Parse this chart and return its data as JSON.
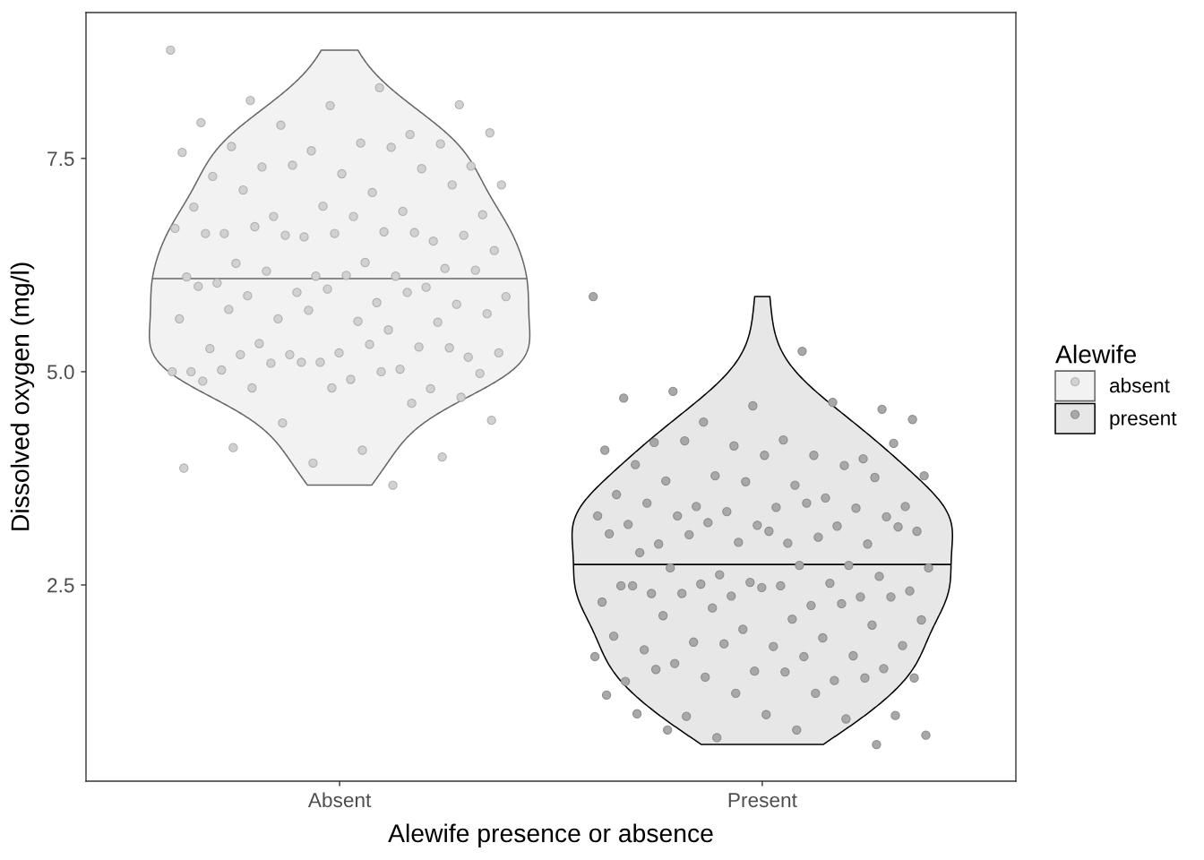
{
  "chart_data": {
    "type": "scatter",
    "marker": "circle",
    "xlabel": "Alewife presence or absence",
    "ylabel": "Dissolved oxygen (mg/l)",
    "legend_title": "Alewife",
    "legend": "right",
    "categories": [
      "Absent",
      "Present"
    ],
    "ylim": [
      0.2,
      9.21
    ],
    "yticks": [
      2.5,
      {
        "value": 5,
        "label": "5.0"
      },
      7.5
    ],
    "ref_lines": [
      {
        "axis": "y",
        "value": 6.09,
        "color": "#666666"
      },
      {
        "axis": "y",
        "value": 2.74,
        "color": "#000000"
      }
    ],
    "series": [
      {
        "name": "absent",
        "color": "#d1d1d1",
        "x": [
          "Absent",
          "Absent",
          "Absent",
          "Absent",
          "Absent",
          "Absent",
          "Absent",
          "Absent",
          "Absent",
          "Absent",
          "Absent",
          "Absent",
          "Absent",
          "Absent",
          "Absent",
          "Absent",
          "Absent",
          "Absent",
          "Absent",
          "Absent",
          "Absent",
          "Absent",
          "Absent",
          "Absent",
          "Absent",
          "Absent",
          "Absent",
          "Absent",
          "Absent",
          "Absent",
          "Absent",
          "Absent",
          "Absent",
          "Absent",
          "Absent",
          "Absent",
          "Absent",
          "Absent",
          "Absent",
          "Absent",
          "Absent",
          "Absent",
          "Absent",
          "Absent",
          "Absent",
          "Absent",
          "Absent",
          "Absent",
          "Absent",
          "Absent",
          "Absent",
          "Absent",
          "Absent",
          "Absent",
          "Absent",
          "Absent",
          "Absent",
          "Absent",
          "Absent",
          "Absent",
          "Absent",
          "Absent",
          "Absent",
          "Absent",
          "Absent",
          "Absent",
          "Absent",
          "Absent",
          "Absent",
          "Absent",
          "Absent",
          "Absent",
          "Absent",
          "Absent",
          "Absent",
          "Absent",
          "Absent",
          "Absent",
          "Absent",
          "Absent",
          "Absent",
          "Absent",
          "Absent",
          "Absent",
          "Absent",
          "Absent",
          "Absent",
          "Absent",
          "Absent",
          "Absent",
          "Absent",
          "Absent",
          "Absent",
          "Absent",
          "Absent",
          "Absent",
          "Absent",
          "Absent",
          "Absent",
          "Absent",
          "Absent",
          "Absent",
          "Absent",
          "Absent"
        ],
        "values": [
          8.77,
          8.33,
          8.18,
          8.13,
          8.12,
          7.92,
          7.78,
          7.89,
          7.8,
          7.68,
          7.64,
          7.67,
          7.59,
          7.57,
          7.63,
          7.4,
          7.41,
          7.32,
          7.29,
          7.38,
          7.42,
          7.19,
          7.1,
          7.13,
          7.19,
          6.94,
          6.93,
          6.88,
          6.82,
          6.84,
          6.82,
          6.62,
          6.53,
          6.58,
          6.68,
          6.64,
          6.7,
          6.6,
          6.62,
          6.62,
          6.63,
          6.6,
          6.42,
          6.28,
          6.27,
          6.21,
          6.12,
          6.11,
          6.12,
          6.18,
          6.19,
          6.13,
          6.04,
          5.99,
          5.93,
          5.88,
          5.81,
          5.89,
          5.79,
          5.97,
          6.0,
          5.93,
          5.62,
          5.68,
          5.59,
          5.73,
          5.58,
          5.72,
          5.62,
          5.49,
          5.33,
          5.17,
          5.22,
          5.27,
          5.29,
          5.2,
          5.22,
          5.32,
          5.2,
          5.28,
          5.11,
          5.0,
          5.03,
          5.1,
          4.98,
          4.91,
          5.02,
          4.8,
          5.11,
          5.0,
          5.0,
          4.81,
          4.7,
          4.81,
          4.89,
          4.63,
          4.4,
          4.43,
          4.08,
          4.11,
          4.0,
          3.93,
          3.87,
          3.67
        ]
      },
      {
        "name": "present",
        "color": "#a8a8a8",
        "x": [
          "Present",
          "Present",
          "Present",
          "Present",
          "Present",
          "Present",
          "Present",
          "Present",
          "Present",
          "Present",
          "Present",
          "Present",
          "Present",
          "Present",
          "Present",
          "Present",
          "Present",
          "Present",
          "Present",
          "Present",
          "Present",
          "Present",
          "Present",
          "Present",
          "Present",
          "Present",
          "Present",
          "Present",
          "Present",
          "Present",
          "Present",
          "Present",
          "Present",
          "Present",
          "Present",
          "Present",
          "Present",
          "Present",
          "Present",
          "Present",
          "Present",
          "Present",
          "Present",
          "Present",
          "Present",
          "Present",
          "Present",
          "Present",
          "Present",
          "Present",
          "Present",
          "Present",
          "Present",
          "Present",
          "Present",
          "Present",
          "Present",
          "Present",
          "Present",
          "Present",
          "Present",
          "Present",
          "Present",
          "Present",
          "Present",
          "Present",
          "Present",
          "Present",
          "Present",
          "Present",
          "Present",
          "Present",
          "Present",
          "Present",
          "Present",
          "Present",
          "Present",
          "Present",
          "Present",
          "Present",
          "Present",
          "Present",
          "Present",
          "Present",
          "Present",
          "Present",
          "Present",
          "Present",
          "Present",
          "Present",
          "Present",
          "Present",
          "Present",
          "Present",
          "Present",
          "Present",
          "Present",
          "Present",
          "Present",
          "Present",
          "Present",
          "Present",
          "Present",
          "Present",
          "Present",
          "Present",
          "Present",
          "Present",
          "Present",
          "Present",
          "Present",
          "Present",
          "Present",
          "Present"
        ],
        "values": [
          5.88,
          5.24,
          4.77,
          4.56,
          4.6,
          4.69,
          4.64,
          4.41,
          4.44,
          4.2,
          4.17,
          3.98,
          4.13,
          4.08,
          4.02,
          4.19,
          4.16,
          4.02,
          3.91,
          3.9,
          3.78,
          3.78,
          3.67,
          3.72,
          3.76,
          3.71,
          3.56,
          3.52,
          3.42,
          3.42,
          3.41,
          3.46,
          3.4,
          3.36,
          3.31,
          3.46,
          3.31,
          3.3,
          3.2,
          3.21,
          3.19,
          3.23,
          3.13,
          2.99,
          2.98,
          2.98,
          3.0,
          3.1,
          3.06,
          3.09,
          3.18,
          3.13,
          2.88,
          2.73,
          2.62,
          2.7,
          2.73,
          2.7,
          2.6,
          2.53,
          2.49,
          2.52,
          2.51,
          2.43,
          2.49,
          2.4,
          2.36,
          2.37,
          2.3,
          2.26,
          2.4,
          2.36,
          2.47,
          2.49,
          2.28,
          2.23,
          2.09,
          2.1,
          2.14,
          2.03,
          1.98,
          1.9,
          1.88,
          1.83,
          1.79,
          1.78,
          1.74,
          1.67,
          1.81,
          1.66,
          1.66,
          1.58,
          1.52,
          1.49,
          1.37,
          1.38,
          1.42,
          1.41,
          1.48,
          1.51,
          1.41,
          1.23,
          1.21,
          1.23,
          0.96,
          0.97,
          0.98,
          0.99,
          0.93,
          0.71,
          0.74,
          0.8,
          0.8,
          0.63
        ]
      }
    ]
  }
}
